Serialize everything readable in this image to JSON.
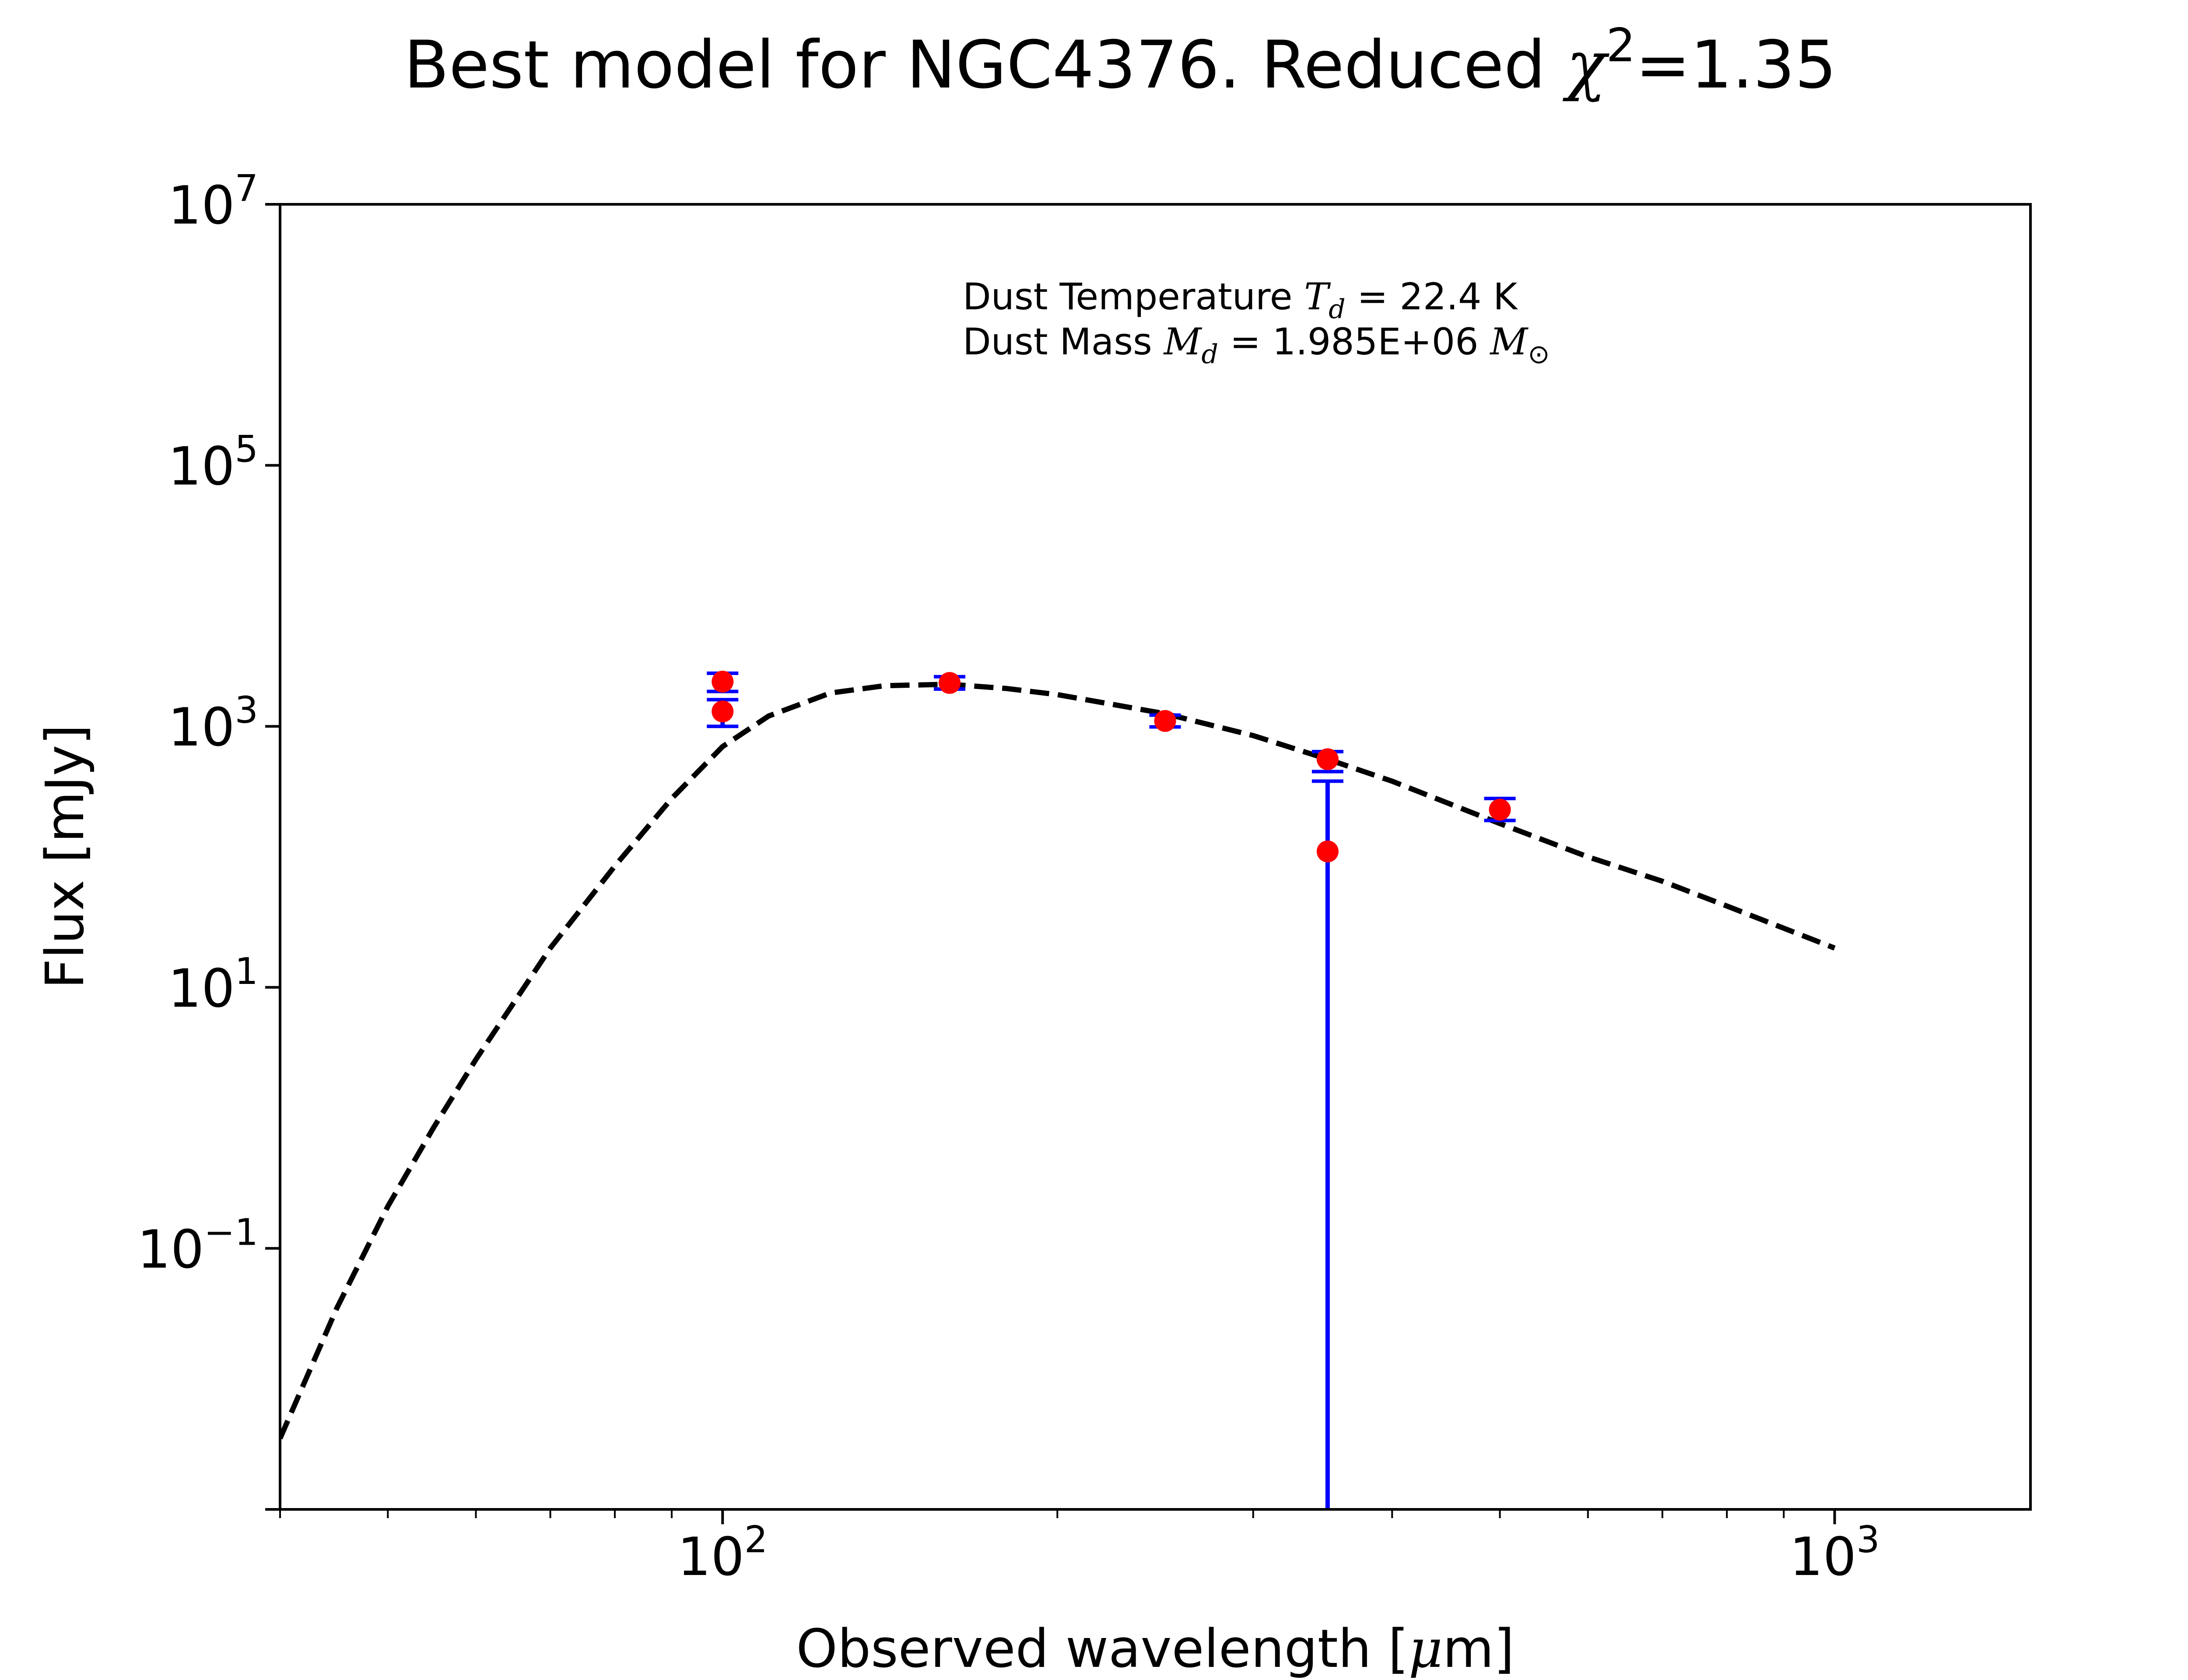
{
  "chart_data": {
    "type": "scatter",
    "title": {
      "prefix": "Best model for NGC4376. Reduced ",
      "chi": "χ",
      "chi_exp": "2",
      "suffix": "=1.35"
    },
    "xlabel": {
      "prefix": "Observed wavelength [",
      "mu": "μ",
      "suffix": "m]"
    },
    "ylabel": "Flux [mJy]",
    "xscale": "log",
    "yscale": "log",
    "xlim": [
      40,
      1500
    ],
    "ylim": [
      0.001,
      10000000
    ],
    "x_ticks": [
      {
        "value": 100,
        "base": "10",
        "exp": "2"
      },
      {
        "value": 1000,
        "base": "10",
        "exp": "3"
      }
    ],
    "y_ticks": [
      {
        "value": 0.1,
        "base": "10",
        "exp": "−1"
      },
      {
        "value": 10,
        "base": "10",
        "exp": "1"
      },
      {
        "value": 1000,
        "base": "10",
        "exp": "3"
      },
      {
        "value": 100000,
        "base": "10",
        "exp": "5"
      },
      {
        "value": 10000000,
        "base": "10",
        "exp": "7"
      }
    ],
    "annotation": {
      "line1_prefix": "Dust Temperature ",
      "line1_sym": "T",
      "line1_sub": "d",
      "line1_suffix": " = 22.4 K",
      "line2_prefix": "Dust Mass ",
      "line2_sym": "M",
      "line2_sub": "d",
      "line2_mid": " = 1.985E+06 ",
      "line2_unit": "M",
      "line2_unit_sub": "⊙"
    },
    "grid": false,
    "model_curve": {
      "style": "dashed",
      "color": "#000000",
      "x": [
        40,
        45,
        50,
        55,
        60,
        70,
        80,
        90,
        100,
        110,
        125,
        140,
        160,
        180,
        200,
        250,
        300,
        350,
        400,
        500,
        600,
        700,
        800,
        1000
      ],
      "y": [
        0.0035,
        0.035,
        0.21,
        0.85,
        2.8,
        20,
        85,
        280,
        700,
        1200,
        1800,
        2050,
        2100,
        1950,
        1750,
        1250,
        850,
        560,
        380,
        180,
        100,
        65,
        42,
        20
      ]
    },
    "observations": {
      "marker_color": "#ff0000",
      "errorbar_color": "#0000ff",
      "points": [
        {
          "x": 100,
          "y": 2200,
          "err_low": 1850,
          "err_high": 2550
        },
        {
          "x": 100,
          "y": 1300,
          "err_low": 1000,
          "err_high": 1600
        },
        {
          "x": 160,
          "y": 2150,
          "err_low": 1930,
          "err_high": 2400
        },
        {
          "x": 250,
          "y": 1100,
          "err_low": 990,
          "err_high": 1220
        },
        {
          "x": 350,
          "y": 560,
          "err_low": 450,
          "err_high": 640
        },
        {
          "x": 350,
          "y": 110,
          "err_low": 0.001,
          "err_high": 380
        },
        {
          "x": 500,
          "y": 230,
          "err_low": 190,
          "err_high": 280
        }
      ]
    }
  }
}
